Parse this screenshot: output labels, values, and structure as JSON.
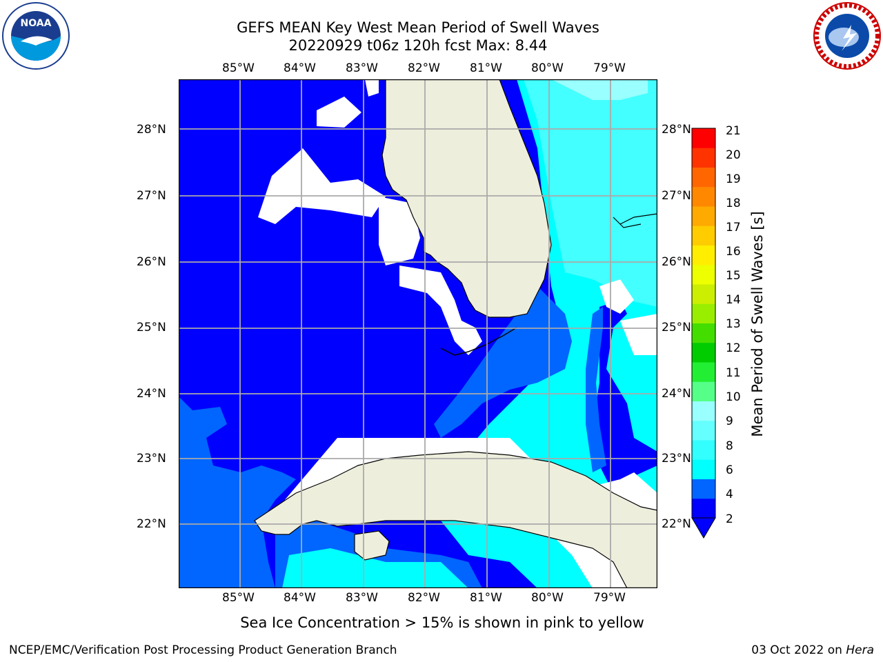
{
  "title_line1": "GEFS MEAN Key West Mean Period of Swell Waves",
  "title_line2": "20220929 t06z 120h fcst   Max: 8.44",
  "logos": {
    "left": "noaa-logo",
    "right": "nws-logo"
  },
  "longitude_labels": [
    "85°W",
    "84°W",
    "83°W",
    "82°W",
    "81°W",
    "80°W",
    "79°W"
  ],
  "latitude_labels": [
    "28°N",
    "27°N",
    "26°N",
    "25°N",
    "24°N",
    "23°N",
    "22°N"
  ],
  "colorbar": {
    "label": "Mean Period of Swell Waves [s]",
    "ticks": [
      "21",
      "20",
      "19",
      "18",
      "17",
      "16",
      "15",
      "14",
      "13",
      "12",
      "11",
      "10",
      "9",
      "8",
      "6",
      "4",
      "2"
    ],
    "colors": [
      "#0000ff",
      "#0066ff",
      "#00ffff",
      "#33ffff",
      "#66ffff",
      "#99ffff",
      "#55ff88",
      "#22ee33",
      "#00cc00",
      "#44dd00",
      "#99ee00",
      "#ccee00",
      "#eeff00",
      "#ffee00",
      "#ffcc00",
      "#ffaa00",
      "#ff8800",
      "#ff6600",
      "#ff3300",
      "#ff0000"
    ]
  },
  "map_colors": {
    "land": "#eeeedd",
    "deep_blue": "#0000ff",
    "mid_blue": "#0066ff",
    "cyan": "#00ffff",
    "light_cyan": "#44ffff",
    "pale_cyan": "#99ffff",
    "white": "#ffffff",
    "grid": "#aaaaaa"
  },
  "caption": "Sea Ice Concentration > 15% is shown in pink to yellow",
  "footer_left": "NCEP/EMC/Verification Post Processing Product Generation Branch",
  "footer_date": "03 Oct 2022 on ",
  "footer_machine": "Hera"
}
